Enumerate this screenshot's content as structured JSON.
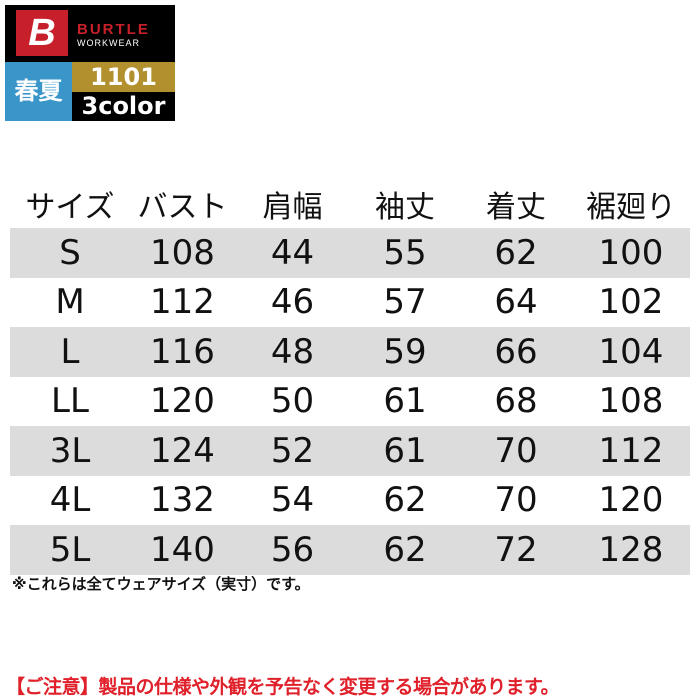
{
  "logo": {
    "mark": "B",
    "brand": "BURTLE",
    "sub": "WORKWEAR",
    "season": "春夏",
    "code": "1101",
    "colors": "3color",
    "accent_red": "#c8202a",
    "season_blue": "#3a95c8",
    "code_gold": "#b3902e"
  },
  "table": {
    "headers": [
      "サイズ",
      "バスト",
      "肩幅",
      "袖丈",
      "着丈",
      "裾廻り"
    ],
    "rows": [
      [
        "S",
        "108",
        "44",
        "55",
        "62",
        "100"
      ],
      [
        "M",
        "112",
        "46",
        "57",
        "64",
        "102"
      ],
      [
        "L",
        "116",
        "48",
        "59",
        "66",
        "104"
      ],
      [
        "LL",
        "120",
        "50",
        "61",
        "68",
        "108"
      ],
      [
        "3L",
        "124",
        "52",
        "61",
        "70",
        "112"
      ],
      [
        "4L",
        "132",
        "54",
        "62",
        "70",
        "120"
      ],
      [
        "5L",
        "140",
        "56",
        "62",
        "72",
        "128"
      ]
    ]
  },
  "note": "※これらは全てウェアサイズ（実寸）です。",
  "warning": "【ご注意】製品の仕様や外観を予告なく変更する場合があります。"
}
